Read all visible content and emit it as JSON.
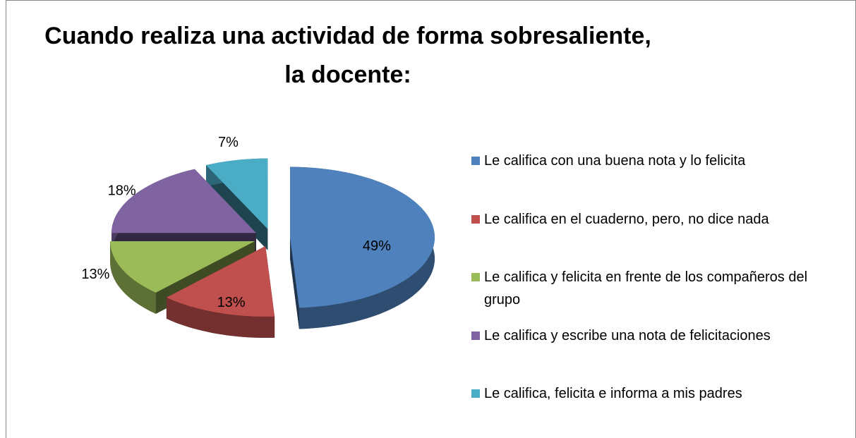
{
  "chart_data": {
    "type": "pie",
    "title": [
      "Cuando realiza una actividad de forma sobresaliente,",
      "la docente:"
    ],
    "categories": [
      "Le califica con una buena nota y lo felicita",
      "Le califica en el cuaderno, pero, no dice nada",
      "Le califica y felicita en frente de los compañeros del grupo",
      "Le califica y escribe una nota de felicitaciones",
      "Le califica, felicita e informa a mis padres"
    ],
    "values": [
      49,
      13,
      13,
      18,
      7
    ],
    "value_labels": [
      "49%",
      "13%",
      "13%",
      "18%",
      "7%"
    ],
    "colors": [
      "#4f81bd",
      "#c0504d",
      "#9bbb59",
      "#8064a2",
      "#4bacc6"
    ],
    "legend": "right"
  }
}
